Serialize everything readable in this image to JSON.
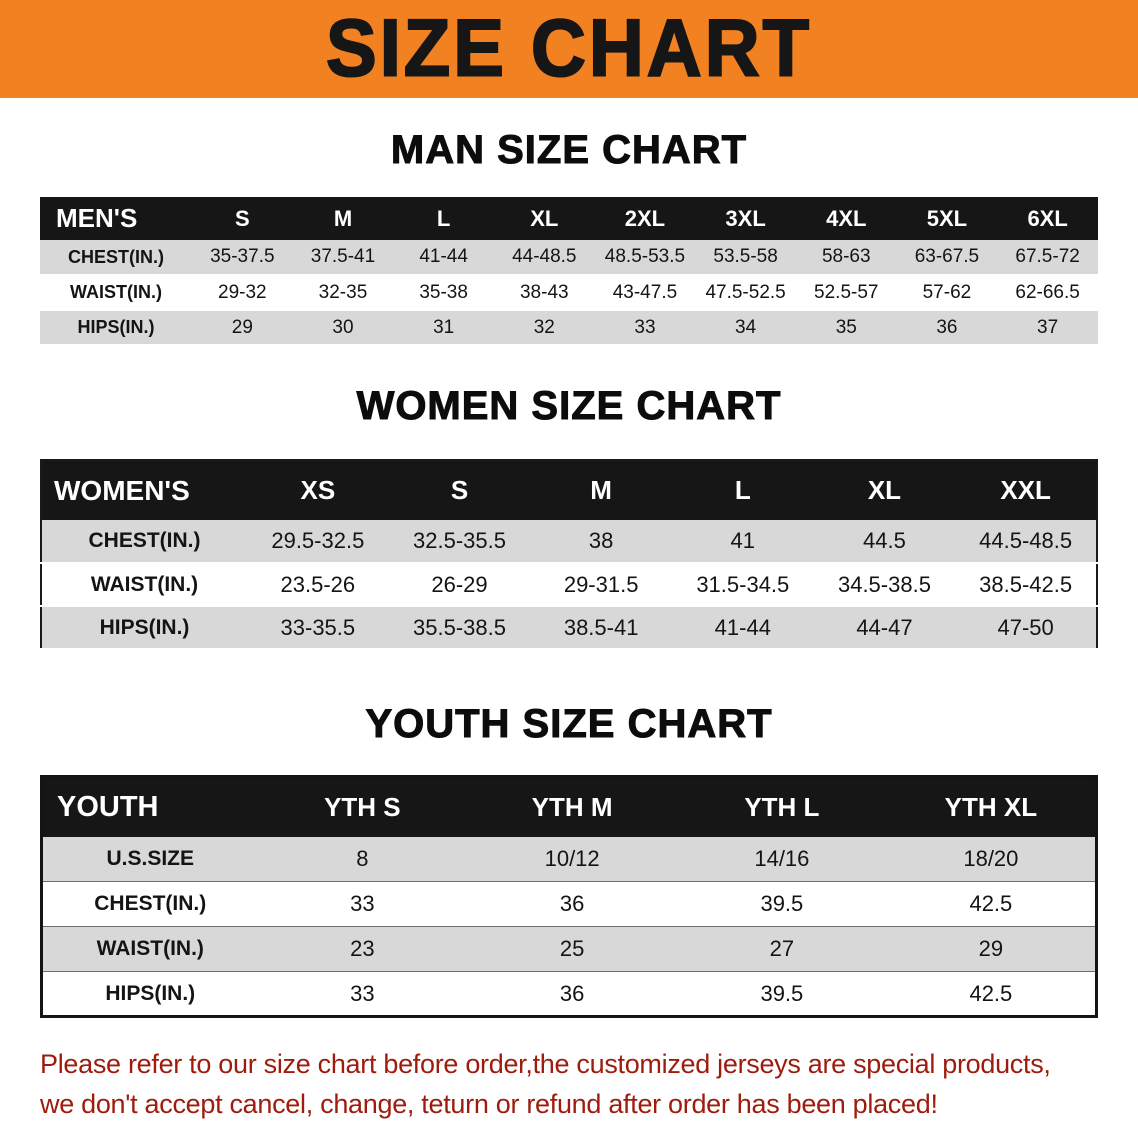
{
  "banner": {
    "title": "SIZE CHART",
    "bg_color": "#F28121",
    "text_color": "#161616"
  },
  "colors": {
    "table_header_bg": "#161616",
    "row_stripe": "#d8d8d8",
    "table_border": "#141414",
    "notice_text": "#9E1B0D"
  },
  "chart_data": [
    {
      "type": "table",
      "title": "MAN SIZE CHART",
      "columns": [
        "MEN'S",
        "S",
        "M",
        "L",
        "XL",
        "2XL",
        "3XL",
        "4XL",
        "5XL",
        "6XL"
      ],
      "rows": [
        [
          "CHEST(IN.)",
          "35-37.5",
          "37.5-41",
          "41-44",
          "44-48.5",
          "48.5-53.5",
          "53.5-58",
          "58-63",
          "63-67.5",
          "67.5-72"
        ],
        [
          "WAIST(IN.)",
          "29-32",
          "32-35",
          "35-38",
          "38-43",
          "43-47.5",
          "47.5-52.5",
          "52.5-57",
          "57-62",
          "62-66.5"
        ],
        [
          "HIPS(IN.)",
          "29",
          "30",
          "31",
          "32",
          "33",
          "34",
          "35",
          "36",
          "37"
        ]
      ]
    },
    {
      "type": "table",
      "title": "WOMEN SIZE CHART",
      "columns": [
        "WOMEN'S",
        "XS",
        "S",
        "M",
        "L",
        "XL",
        "XXL"
      ],
      "rows": [
        [
          "CHEST(IN.)",
          "29.5-32.5",
          "32.5-35.5",
          "38",
          "41",
          "44.5",
          "44.5-48.5"
        ],
        [
          "WAIST(IN.)",
          "23.5-26",
          "26-29",
          "29-31.5",
          "31.5-34.5",
          "34.5-38.5",
          "38.5-42.5"
        ],
        [
          "HIPS(IN.)",
          "33-35.5",
          "35.5-38.5",
          "38.5-41",
          "41-44",
          "44-47",
          "47-50"
        ]
      ]
    },
    {
      "type": "table",
      "title": "YOUTH SIZE CHART",
      "columns": [
        "YOUTH",
        "YTH S",
        "YTH M",
        "YTH L",
        "YTH XL"
      ],
      "rows": [
        [
          "U.S.SIZE",
          "8",
          "10/12",
          "14/16",
          "18/20"
        ],
        [
          "CHEST(IN.)",
          "33",
          "36",
          "39.5",
          "42.5"
        ],
        [
          "WAIST(IN.)",
          "23",
          "25",
          "27",
          "29"
        ],
        [
          "HIPS(IN.)",
          "33",
          "36",
          "39.5",
          "42.5"
        ]
      ]
    }
  ],
  "footer": {
    "line1": "Please refer to our size chart before order,the customized jerseys are special products,",
    "line2": "we don't accept cancel, change, teturn or refund after order has been placed!",
    "text_color": "#9E1B0D"
  }
}
